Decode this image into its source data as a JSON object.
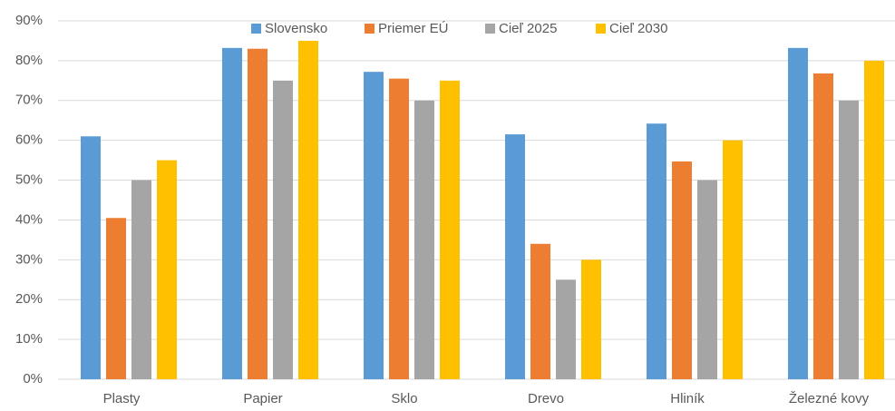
{
  "chart_data": {
    "type": "bar",
    "categories": [
      "Plasty",
      "Papier",
      "Sklo",
      "Drevo",
      "Hliník",
      "Železné kovy"
    ],
    "series": [
      {
        "name": "Slovensko",
        "color": "#5b9bd5",
        "values": [
          61,
          83.2,
          77.2,
          61.5,
          64.2,
          83.2
        ]
      },
      {
        "name": "Priemer EÚ",
        "color": "#ed7d31",
        "values": [
          40.5,
          83,
          75.5,
          34,
          54.7,
          76.8
        ]
      },
      {
        "name": "Cieľ 2025",
        "color": "#a5a5a5",
        "values": [
          50,
          75,
          70,
          25,
          50,
          70
        ]
      },
      {
        "name": "Cieľ 2030",
        "color": "#ffc000",
        "values": [
          55,
          85,
          75,
          30,
          60,
          80
        ]
      }
    ],
    "ylim": [
      0,
      90
    ],
    "yticks": [
      {
        "value": 0,
        "label": "0%"
      },
      {
        "value": 10,
        "label": "10%"
      },
      {
        "value": 20,
        "label": "20%"
      },
      {
        "value": 30,
        "label": "30%"
      },
      {
        "value": 40,
        "label": "40%"
      },
      {
        "value": 50,
        "label": "50%"
      },
      {
        "value": 60,
        "label": "60%"
      },
      {
        "value": 70,
        "label": "70%"
      },
      {
        "value": 80,
        "label": "80%"
      },
      {
        "value": 90,
        "label": "90%"
      }
    ],
    "grid": true,
    "legend": "top"
  }
}
